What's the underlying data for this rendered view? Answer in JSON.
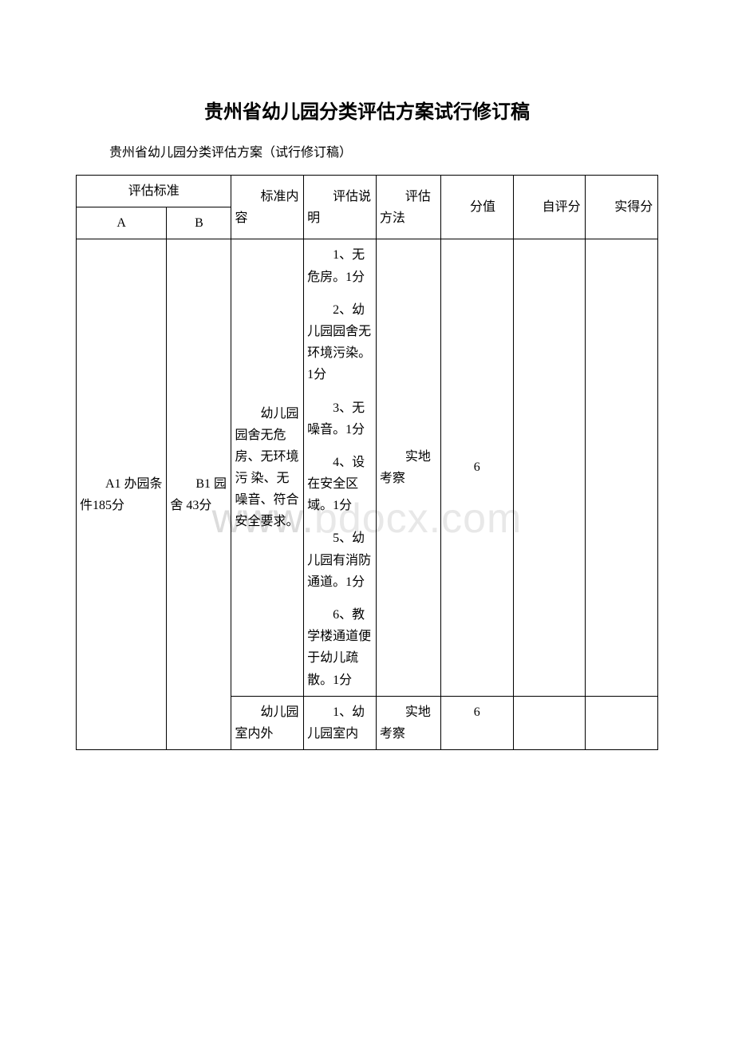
{
  "title": "贵州省幼儿园分类评估方案试行修订稿",
  "subtitle": "贵州省幼儿园分类评估方案（试行修订稿）",
  "watermark": {
    "part1": "www.",
    "part2": "bdocx.com"
  },
  "headers": {
    "eval_std": "评估标准",
    "a": "A",
    "b": "B",
    "std_content": "标准内容",
    "eval_desc": "评估说明",
    "eval_method": "评估方法",
    "score_value": "分值",
    "self_score": "自评分",
    "actual_score": "实得分"
  },
  "rows": {
    "r1": {
      "a": "A1  办园条件185分",
      "b": "B1  园舍  43分",
      "c": "幼儿园园舍无危房、无环境污  染、无噪音、符合安全要求。",
      "d_items": [
        "1、无危房。1分",
        "2、幼儿园园舍无环境污染。1分",
        "3、无噪音。1分",
        "4、设在安全区域。1分",
        "5、幼儿园有消防通道。1分",
        "6、教学楼通道便于幼儿疏散。1分"
      ],
      "e": "实地考察",
      "f": "6"
    },
    "r2": {
      "c": "幼儿园室内外",
      "d_items": [
        "1、幼儿园室内"
      ],
      "e": "实地考察",
      "f": "6"
    }
  }
}
